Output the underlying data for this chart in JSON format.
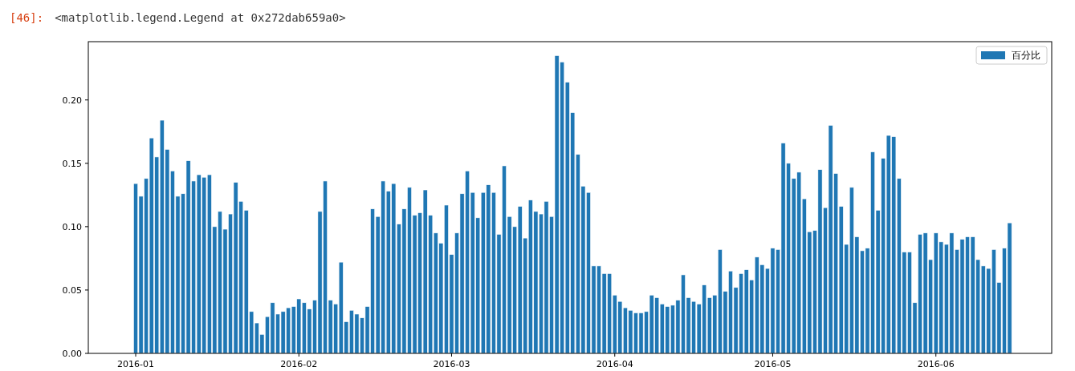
{
  "chart_data": {
    "type": "bar",
    "annotations": [
      "[46]:",
      "<matplotlib.legend.Legend at 0x272dab659a0>"
    ],
    "x": [
      "2016-01-01",
      "2016-01-02",
      "2016-01-03",
      "2016-01-04",
      "2016-01-05",
      "2016-01-06",
      "2016-01-07",
      "2016-01-08",
      "2016-01-09",
      "2016-01-10",
      "2016-01-11",
      "2016-01-12",
      "2016-01-13",
      "2016-01-14",
      "2016-01-15",
      "2016-01-16",
      "2016-01-17",
      "2016-01-18",
      "2016-01-19",
      "2016-01-20",
      "2016-01-21",
      "2016-01-22",
      "2016-01-23",
      "2016-01-24",
      "2016-01-25",
      "2016-01-26",
      "2016-01-27",
      "2016-01-28",
      "2016-01-29",
      "2016-01-30",
      "2016-01-31",
      "2016-02-01",
      "2016-02-02",
      "2016-02-03",
      "2016-02-04",
      "2016-02-05",
      "2016-02-06",
      "2016-02-07",
      "2016-02-08",
      "2016-02-09",
      "2016-02-10",
      "2016-02-11",
      "2016-02-12",
      "2016-02-13",
      "2016-02-14",
      "2016-02-15",
      "2016-02-16",
      "2016-02-17",
      "2016-02-18",
      "2016-02-19",
      "2016-02-20",
      "2016-02-21",
      "2016-02-22",
      "2016-02-23",
      "2016-02-24",
      "2016-02-25",
      "2016-02-26",
      "2016-02-27",
      "2016-02-28",
      "2016-02-29",
      "2016-03-01",
      "2016-03-02",
      "2016-03-03",
      "2016-03-04",
      "2016-03-05",
      "2016-03-06",
      "2016-03-07",
      "2016-03-08",
      "2016-03-09",
      "2016-03-10",
      "2016-03-11",
      "2016-03-12",
      "2016-03-13",
      "2016-03-14",
      "2016-03-15",
      "2016-03-16",
      "2016-03-17",
      "2016-03-18",
      "2016-03-19",
      "2016-03-20",
      "2016-03-21",
      "2016-03-22",
      "2016-03-23",
      "2016-03-24",
      "2016-03-25",
      "2016-03-26",
      "2016-03-27",
      "2016-03-28",
      "2016-03-29",
      "2016-03-30",
      "2016-03-31",
      "2016-04-01",
      "2016-04-02",
      "2016-04-03",
      "2016-04-04",
      "2016-04-05",
      "2016-04-06",
      "2016-04-07",
      "2016-04-08",
      "2016-04-09",
      "2016-04-10",
      "2016-04-11",
      "2016-04-12",
      "2016-04-13",
      "2016-04-14",
      "2016-04-15",
      "2016-04-16",
      "2016-04-17",
      "2016-04-18",
      "2016-04-19",
      "2016-04-20",
      "2016-04-21",
      "2016-04-22",
      "2016-04-23",
      "2016-04-24",
      "2016-04-25",
      "2016-04-26",
      "2016-04-27",
      "2016-04-28",
      "2016-04-29",
      "2016-04-30",
      "2016-05-01",
      "2016-05-02",
      "2016-05-03",
      "2016-05-04",
      "2016-05-05",
      "2016-05-06",
      "2016-05-07",
      "2016-05-08",
      "2016-05-09",
      "2016-05-10",
      "2016-05-11",
      "2016-05-12",
      "2016-05-13",
      "2016-05-14",
      "2016-05-15",
      "2016-05-16",
      "2016-05-17",
      "2016-05-18",
      "2016-05-19",
      "2016-05-20",
      "2016-05-21",
      "2016-05-22",
      "2016-05-23",
      "2016-05-24",
      "2016-05-25",
      "2016-05-26",
      "2016-05-27",
      "2016-05-28",
      "2016-05-29",
      "2016-05-30",
      "2016-05-31",
      "2016-06-01",
      "2016-06-02",
      "2016-06-03",
      "2016-06-04",
      "2016-06-05",
      "2016-06-06",
      "2016-06-07",
      "2016-06-08",
      "2016-06-09",
      "2016-06-10",
      "2016-06-11",
      "2016-06-12",
      "2016-06-13",
      "2016-06-14",
      "2016-06-15"
    ],
    "series": [
      {
        "name": "百分比",
        "color": "#1f77b4",
        "values": [
          0.134,
          0.124,
          0.138,
          0.17,
          0.155,
          0.184,
          0.161,
          0.144,
          0.124,
          0.126,
          0.152,
          0.136,
          0.141,
          0.139,
          0.141,
          0.1,
          0.112,
          0.098,
          0.11,
          0.135,
          0.12,
          0.113,
          0.033,
          0.024,
          0.015,
          0.029,
          0.04,
          0.031,
          0.033,
          0.036,
          0.037,
          0.043,
          0.04,
          0.035,
          0.042,
          0.112,
          0.136,
          0.042,
          0.039,
          0.072,
          0.025,
          0.034,
          0.031,
          0.028,
          0.037,
          0.114,
          0.108,
          0.136,
          0.128,
          0.134,
          0.102,
          0.114,
          0.131,
          0.109,
          0.111,
          0.129,
          0.109,
          0.095,
          0.087,
          0.117,
          0.078,
          0.095,
          0.126,
          0.144,
          0.127,
          0.107,
          0.127,
          0.133,
          0.127,
          0.094,
          0.148,
          0.108,
          0.1,
          0.116,
          0.091,
          0.121,
          0.112,
          0.11,
          0.12,
          0.108,
          0.235,
          0.23,
          0.214,
          0.19,
          0.157,
          0.132,
          0.127,
          0.069,
          0.069,
          0.063,
          0.063,
          0.046,
          0.041,
          0.036,
          0.034,
          0.032,
          0.032,
          0.033,
          0.046,
          0.044,
          0.039,
          0.037,
          0.038,
          0.042,
          0.062,
          0.044,
          0.041,
          0.039,
          0.054,
          0.044,
          0.046,
          0.082,
          0.049,
          0.065,
          0.052,
          0.063,
          0.066,
          0.058,
          0.076,
          0.07,
          0.067,
          0.083,
          0.082,
          0.166,
          0.15,
          0.138,
          0.143,
          0.122,
          0.096,
          0.097,
          0.145,
          0.115,
          0.18,
          0.142,
          0.116,
          0.086,
          0.131,
          0.092,
          0.081,
          0.083,
          0.159,
          0.113,
          0.154,
          0.172,
          0.171,
          0.138,
          0.08,
          0.08,
          0.04,
          0.094,
          0.095,
          0.074,
          0.095,
          0.088,
          0.086,
          0.095,
          0.082,
          0.09,
          0.092,
          0.092,
          0.074,
          0.069,
          0.067,
          0.082,
          0.056,
          0.083,
          0.103
        ]
      }
    ],
    "xlim": [
      "2015-12-23",
      "2016-06-23"
    ],
    "xticks": [
      "2016-01",
      "2016-02",
      "2016-03",
      "2016-04",
      "2016-05",
      "2016-06"
    ],
    "ylim": [
      0,
      0.246
    ],
    "yticks": [
      {
        "value": 0,
        "label": "0.00"
      },
      {
        "value": 0.05,
        "label": "0.05"
      },
      {
        "value": 0.1,
        "label": "0.10"
      },
      {
        "value": 0.15,
        "label": "0.15"
      },
      {
        "value": 0.2,
        "label": "0.20"
      }
    ],
    "legend": "top right"
  }
}
